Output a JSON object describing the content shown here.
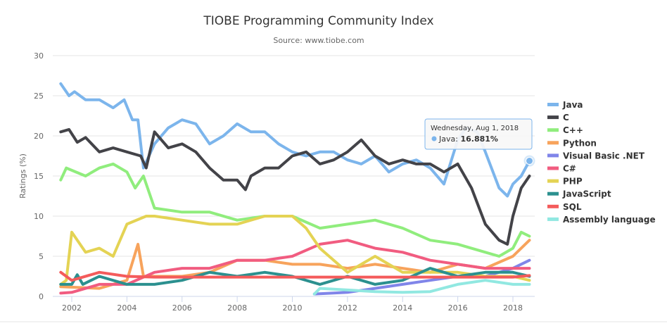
{
  "chart_data": {
    "type": "line",
    "title": "TIOBE Programming Community Index",
    "subtitle": "Source: www.tiobe.com",
    "xlabel": "",
    "ylabel": "Ratings (%)",
    "xlim": [
      2001.5,
      2018.7
    ],
    "ylim": [
      0,
      30
    ],
    "x_ticks": [
      "2002",
      "2004",
      "2006",
      "2008",
      "2010",
      "2012",
      "2014",
      "2016",
      "2018"
    ],
    "y_ticks": [
      "0",
      "5",
      "10",
      "15",
      "20",
      "25",
      "30"
    ],
    "grid": true,
    "legend_position": "right",
    "series": [
      {
        "name": "Java",
        "color": "#7cb5ec",
        "points": [
          [
            2001.6,
            26.5
          ],
          [
            2001.9,
            25
          ],
          [
            2002.1,
            25.5
          ],
          [
            2002.5,
            24.5
          ],
          [
            2003,
            24.5
          ],
          [
            2003.5,
            23.5
          ],
          [
            2003.9,
            24.5
          ],
          [
            2004.2,
            22
          ],
          [
            2004.4,
            22
          ],
          [
            2004.6,
            16
          ],
          [
            2005,
            19
          ],
          [
            2005.5,
            21
          ],
          [
            2006,
            22
          ],
          [
            2006.5,
            21.5
          ],
          [
            2007,
            19
          ],
          [
            2007.5,
            20
          ],
          [
            2008,
            21.5
          ],
          [
            2008.5,
            20.5
          ],
          [
            2009,
            20.5
          ],
          [
            2009.5,
            19
          ],
          [
            2010,
            18
          ],
          [
            2010.5,
            17.5
          ],
          [
            2011,
            18
          ],
          [
            2011.5,
            18
          ],
          [
            2012,
            17
          ],
          [
            2012.5,
            16.5
          ],
          [
            2013,
            17.5
          ],
          [
            2013.5,
            15.5
          ],
          [
            2014,
            16.5
          ],
          [
            2014.5,
            17
          ],
          [
            2015,
            16
          ],
          [
            2015.5,
            14
          ],
          [
            2016,
            19.5
          ],
          [
            2016.3,
            21
          ],
          [
            2016.7,
            20.5
          ],
          [
            2017,
            18
          ],
          [
            2017.5,
            13.5
          ],
          [
            2017.8,
            12.5
          ],
          [
            2018,
            14
          ],
          [
            2018.3,
            15
          ],
          [
            2018.6,
            16.881
          ]
        ]
      },
      {
        "name": "C",
        "color": "#434348",
        "points": [
          [
            2001.6,
            20.5
          ],
          [
            2001.9,
            20.8
          ],
          [
            2002.2,
            19.2
          ],
          [
            2002.5,
            19.8
          ],
          [
            2003,
            18
          ],
          [
            2003.5,
            18.5
          ],
          [
            2004,
            18
          ],
          [
            2004.5,
            17.5
          ],
          [
            2004.7,
            16
          ],
          [
            2005,
            20.5
          ],
          [
            2005.5,
            18.5
          ],
          [
            2006,
            19
          ],
          [
            2006.5,
            18
          ],
          [
            2007,
            16
          ],
          [
            2007.5,
            14.5
          ],
          [
            2008,
            14.5
          ],
          [
            2008.3,
            13.3
          ],
          [
            2008.5,
            15
          ],
          [
            2009,
            16
          ],
          [
            2009.5,
            16
          ],
          [
            2010,
            17.5
          ],
          [
            2010.5,
            18
          ],
          [
            2011,
            16.5
          ],
          [
            2011.5,
            17
          ],
          [
            2012,
            18
          ],
          [
            2012.5,
            19.5
          ],
          [
            2013,
            17.5
          ],
          [
            2013.5,
            16.5
          ],
          [
            2014,
            17
          ],
          [
            2014.5,
            16.5
          ],
          [
            2015,
            16.5
          ],
          [
            2015.5,
            15.5
          ],
          [
            2016,
            16.5
          ],
          [
            2016.5,
            13.5
          ],
          [
            2017,
            9
          ],
          [
            2017.5,
            7
          ],
          [
            2017.8,
            6.5
          ],
          [
            2018,
            10
          ],
          [
            2018.3,
            13.5
          ],
          [
            2018.6,
            15
          ]
        ]
      },
      {
        "name": "C++",
        "color": "#90ed7d",
        "points": [
          [
            2001.6,
            14.5
          ],
          [
            2001.8,
            16
          ],
          [
            2002.5,
            15
          ],
          [
            2003,
            16
          ],
          [
            2003.5,
            16.5
          ],
          [
            2004,
            15.5
          ],
          [
            2004.3,
            13.5
          ],
          [
            2004.6,
            15
          ],
          [
            2005,
            11
          ],
          [
            2006,
            10.5
          ],
          [
            2007,
            10.5
          ],
          [
            2008,
            9.5
          ],
          [
            2009,
            10
          ],
          [
            2010,
            10
          ],
          [
            2011,
            8.5
          ],
          [
            2012,
            9
          ],
          [
            2013,
            9.5
          ],
          [
            2014,
            8.5
          ],
          [
            2015,
            7
          ],
          [
            2016,
            6.5
          ],
          [
            2017,
            5.5
          ],
          [
            2017.5,
            5
          ],
          [
            2018,
            6
          ],
          [
            2018.3,
            8
          ],
          [
            2018.6,
            7.5
          ]
        ]
      },
      {
        "name": "Python",
        "color": "#f7a35c",
        "points": [
          [
            2001.6,
            1.2
          ],
          [
            2003,
            1
          ],
          [
            2004,
            2
          ],
          [
            2004.4,
            6.5
          ],
          [
            2004.6,
            2.5
          ],
          [
            2005,
            2.5
          ],
          [
            2006,
            2.5
          ],
          [
            2007,
            3
          ],
          [
            2008,
            4.5
          ],
          [
            2009,
            4.5
          ],
          [
            2010,
            4
          ],
          [
            2011,
            4
          ],
          [
            2012,
            3.5
          ],
          [
            2013,
            4
          ],
          [
            2014,
            3.5
          ],
          [
            2015,
            3
          ],
          [
            2016,
            4
          ],
          [
            2017,
            3.5
          ],
          [
            2018,
            5
          ],
          [
            2018.6,
            7
          ]
        ]
      },
      {
        "name": "Visual Basic .NET",
        "color": "#8085e9",
        "points": [
          [
            2010.8,
            0.3
          ],
          [
            2012,
            0.5
          ],
          [
            2013,
            1
          ],
          [
            2014,
            1.5
          ],
          [
            2015,
            2
          ],
          [
            2016,
            2.5
          ],
          [
            2017,
            2.5
          ],
          [
            2018,
            3.5
          ],
          [
            2018.6,
            4.5
          ]
        ]
      },
      {
        "name": "C#",
        "color": "#f15c80",
        "points": [
          [
            2001.6,
            0.4
          ],
          [
            2002,
            0.5
          ],
          [
            2003,
            1.5
          ],
          [
            2004,
            1.5
          ],
          [
            2005,
            3
          ],
          [
            2006,
            3.5
          ],
          [
            2007,
            3.5
          ],
          [
            2008,
            4.5
          ],
          [
            2009,
            4.5
          ],
          [
            2010,
            5
          ],
          [
            2011,
            6.5
          ],
          [
            2012,
            7
          ],
          [
            2013,
            6
          ],
          [
            2014,
            5.5
          ],
          [
            2015,
            4.5
          ],
          [
            2016,
            4
          ],
          [
            2017,
            3.5
          ],
          [
            2018,
            3.5
          ],
          [
            2018.6,
            3.5
          ]
        ]
      },
      {
        "name": "PHP",
        "color": "#e4d354",
        "points": [
          [
            2001.6,
            1.5
          ],
          [
            2001.8,
            2
          ],
          [
            2002,
            8
          ],
          [
            2002.5,
            5.5
          ],
          [
            2003,
            6
          ],
          [
            2003.5,
            5
          ],
          [
            2004,
            9
          ],
          [
            2004.7,
            10
          ],
          [
            2005,
            10
          ],
          [
            2006,
            9.5
          ],
          [
            2007,
            9
          ],
          [
            2008,
            9
          ],
          [
            2009,
            10
          ],
          [
            2010,
            10
          ],
          [
            2010.5,
            8.5
          ],
          [
            2011,
            6
          ],
          [
            2012,
            3
          ],
          [
            2013,
            5
          ],
          [
            2014,
            3
          ],
          [
            2015,
            3
          ],
          [
            2016,
            3
          ],
          [
            2017,
            2.5
          ],
          [
            2018,
            2.5
          ],
          [
            2018.6,
            2
          ]
        ]
      },
      {
        "name": "JavaScript",
        "color": "#2b908f",
        "points": [
          [
            2001.6,
            1.5
          ],
          [
            2002,
            1.5
          ],
          [
            2002.2,
            2.7
          ],
          [
            2002.4,
            1.5
          ],
          [
            2003,
            2.5
          ],
          [
            2004,
            1.5
          ],
          [
            2005,
            1.5
          ],
          [
            2006,
            2
          ],
          [
            2007,
            3
          ],
          [
            2008,
            2.5
          ],
          [
            2009,
            3
          ],
          [
            2010,
            2.5
          ],
          [
            2011,
            1.5
          ],
          [
            2012,
            2.5
          ],
          [
            2013,
            1.5
          ],
          [
            2014,
            2
          ],
          [
            2015,
            3.5
          ],
          [
            2016,
            2.5
          ],
          [
            2017,
            3
          ],
          [
            2018,
            3
          ],
          [
            2018.6,
            2.5
          ]
        ]
      },
      {
        "name": "SQL",
        "color": "#f45b5b",
        "points": [
          [
            2001.6,
            3
          ],
          [
            2002,
            2
          ],
          [
            2003,
            3
          ],
          [
            2004,
            2.5
          ],
          [
            2005,
            2.4
          ],
          [
            2010,
            2.4
          ],
          [
            2015,
            2.4
          ],
          [
            2018,
            2.4
          ],
          [
            2018.6,
            2.6
          ]
        ]
      },
      {
        "name": "Assembly language",
        "color": "#91e8e1",
        "points": [
          [
            2010.8,
            0.3
          ],
          [
            2011,
            1
          ],
          [
            2012,
            0.8
          ],
          [
            2013,
            0.6
          ],
          [
            2014,
            0.5
          ],
          [
            2015,
            0.6
          ],
          [
            2016,
            1.5
          ],
          [
            2017,
            2
          ],
          [
            2018,
            1.5
          ],
          [
            2018.6,
            1.5
          ]
        ]
      }
    ],
    "tooltip": {
      "date": "Wednesday, Aug 1, 2018",
      "series": "Java",
      "label": "Java: ",
      "value": "16.881%"
    }
  }
}
